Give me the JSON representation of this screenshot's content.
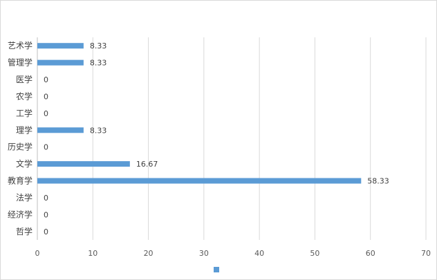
{
  "chart_data": {
    "type": "bar",
    "orientation": "horizontal",
    "categories": [
      "艺术学",
      "管理学",
      "医学",
      "农学",
      "工学",
      "理学",
      "历史学",
      "文学",
      "教育学",
      "法学",
      "经济学",
      "哲学"
    ],
    "values": [
      8.33,
      8.33,
      0,
      0,
      0,
      8.33,
      0,
      16.67,
      58.33,
      0,
      0,
      0
    ],
    "value_labels": [
      "8.33",
      "8.33",
      "0",
      "0",
      "0",
      "8.33",
      "0",
      "16.67",
      "58.33",
      "0",
      "0",
      "0"
    ],
    "xticks": [
      "0",
      "10",
      "20",
      "30",
      "40",
      "50",
      "60",
      "70"
    ],
    "xlim": [
      0,
      70
    ],
    "grid": "vertical",
    "legend": "bottom-center",
    "series_color": "#5b9bd5",
    "title": "",
    "xlabel": "",
    "ylabel": ""
  }
}
